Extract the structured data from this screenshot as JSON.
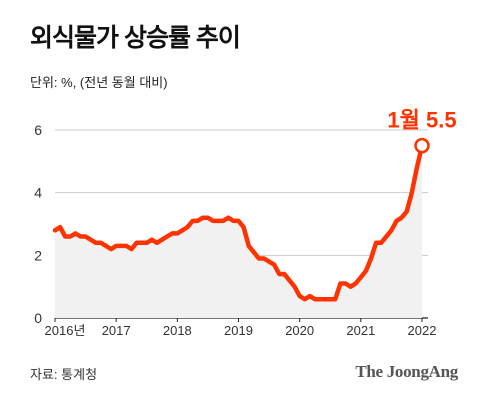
{
  "header": {
    "title": "외식물가 상승률 추이",
    "unit_note": "단위: %, (전년 동월 대비)"
  },
  "footer": {
    "source": "자료: 통계청",
    "brand": "The JoongAng"
  },
  "colors": {
    "line": "#ff3300",
    "area": "#f1f1f1",
    "grid": "#cccccc",
    "axis": "#222222"
  },
  "chart_data": {
    "type": "line",
    "title": "외식물가 상승률 추이",
    "xlabel": "",
    "ylabel": "",
    "ylim": [
      0,
      6
    ],
    "yticks": [
      "0",
      "2",
      "4",
      "6"
    ],
    "xtick_labels": [
      "2016년",
      "2017",
      "2018",
      "2019",
      "2020",
      "2021",
      "2022"
    ],
    "grid": "horizontal",
    "area_fill": true,
    "annotation": {
      "label": "1월 5.5",
      "x": "2022-01",
      "y": 5.5
    },
    "series": [
      {
        "x": [
          "2016-01",
          "2016-02",
          "2016-03",
          "2016-04",
          "2016-05",
          "2016-06",
          "2016-07",
          "2016-08",
          "2016-09",
          "2016-10",
          "2016-11",
          "2016-12",
          "2017-01",
          "2017-02",
          "2017-03",
          "2017-04",
          "2017-05",
          "2017-06",
          "2017-07",
          "2017-08",
          "2017-09",
          "2017-10",
          "2017-11",
          "2017-12",
          "2018-01",
          "2018-02",
          "2018-03",
          "2018-04",
          "2018-05",
          "2018-06",
          "2018-07",
          "2018-08",
          "2018-09",
          "2018-10",
          "2018-11",
          "2018-12",
          "2019-01",
          "2019-02",
          "2019-03",
          "2019-04",
          "2019-05",
          "2019-06",
          "2019-07",
          "2019-08",
          "2019-09",
          "2019-10",
          "2019-11",
          "2019-12",
          "2020-01",
          "2020-02",
          "2020-03",
          "2020-04",
          "2020-05",
          "2020-06",
          "2020-07",
          "2020-08",
          "2020-09",
          "2020-10",
          "2020-11",
          "2020-12",
          "2021-01",
          "2021-02",
          "2021-03",
          "2021-04",
          "2021-05",
          "2021-06",
          "2021-07",
          "2021-08",
          "2021-09",
          "2021-10",
          "2021-11",
          "2021-12",
          "2022-01"
        ],
        "y": [
          2.8,
          2.9,
          2.6,
          2.6,
          2.7,
          2.6,
          2.6,
          2.5,
          2.4,
          2.4,
          2.3,
          2.2,
          2.3,
          2.3,
          2.3,
          2.2,
          2.4,
          2.4,
          2.4,
          2.5,
          2.4,
          2.5,
          2.6,
          2.7,
          2.7,
          2.8,
          2.9,
          3.1,
          3.1,
          3.2,
          3.2,
          3.1,
          3.1,
          3.1,
          3.2,
          3.1,
          3.1,
          2.9,
          2.3,
          2.1,
          1.9,
          1.9,
          1.8,
          1.7,
          1.4,
          1.4,
          1.2,
          1.0,
          0.7,
          0.6,
          0.7,
          0.6,
          0.6,
          0.6,
          0.6,
          0.6,
          1.1,
          1.1,
          1.0,
          1.1,
          1.3,
          1.5,
          1.9,
          2.4,
          2.4,
          2.6,
          2.8,
          3.1,
          3.2,
          3.4,
          4.0,
          4.8,
          5.5
        ]
      }
    ]
  }
}
